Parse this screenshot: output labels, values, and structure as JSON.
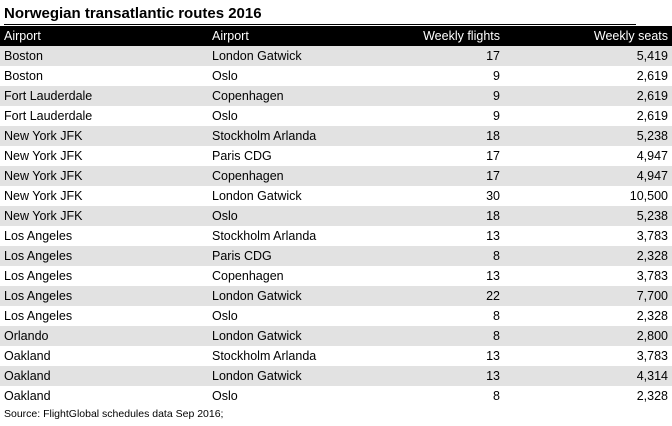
{
  "title": "Norwegian transatlantic routes 2016",
  "headers": [
    "Airport",
    "Airport",
    "Weekly flights",
    "Weekly seats"
  ],
  "rows": [
    [
      "Boston",
      "London Gatwick",
      "17",
      "5,419"
    ],
    [
      "Boston",
      "Oslo",
      "9",
      "2,619"
    ],
    [
      "Fort Lauderdale",
      "Copenhagen",
      "9",
      "2,619"
    ],
    [
      "Fort Lauderdale",
      "Oslo",
      "9",
      "2,619"
    ],
    [
      "New York JFK",
      "Stockholm Arlanda",
      "18",
      "5,238"
    ],
    [
      "New York JFK",
      "Paris CDG",
      "17",
      "4,947"
    ],
    [
      "New York JFK",
      "Copenhagen",
      "17",
      "4,947"
    ],
    [
      "New York JFK",
      "London Gatwick",
      "30",
      "10,500"
    ],
    [
      "New York JFK",
      "Oslo",
      "18",
      "5,238"
    ],
    [
      "Los Angeles",
      "Stockholm Arlanda",
      "13",
      "3,783"
    ],
    [
      "Los Angeles",
      "Paris CDG",
      "8",
      "2,328"
    ],
    [
      "Los Angeles",
      "Copenhagen",
      "13",
      "3,783"
    ],
    [
      "Los Angeles",
      "London Gatwick",
      "22",
      "7,700"
    ],
    [
      "Los Angeles",
      "Oslo",
      "8",
      "2,328"
    ],
    [
      "Orlando",
      "London Gatwick",
      "8",
      "2,800"
    ],
    [
      "Oakland",
      "Stockholm Arlanda",
      "13",
      "3,783"
    ],
    [
      "Oakland",
      "London Gatwick",
      "13",
      "4,314"
    ],
    [
      "Oakland",
      "Oslo",
      "8",
      "2,328"
    ]
  ],
  "source": "Source: FlightGlobal schedules data Sep 2016;",
  "colors": {
    "header_bg": "#000000",
    "header_text": "#ffffff",
    "stripe": "#e2e2e2"
  }
}
